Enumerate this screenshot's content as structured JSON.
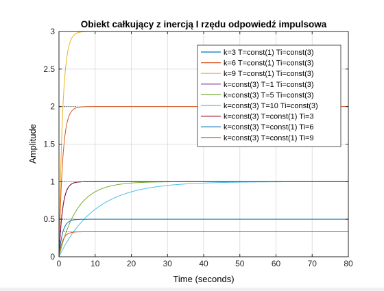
{
  "chart_data": {
    "type": "line",
    "title": "Obiekt całkujący z inercją I rzędu odpowiedź impulsowa",
    "xlabel": "Time (seconds)",
    "ylabel": "Amplitude",
    "xlim": [
      0,
      80
    ],
    "ylim": [
      0,
      3
    ],
    "xticks": [
      0,
      10,
      20,
      30,
      40,
      50,
      60,
      70,
      80
    ],
    "xtick_labels": [
      "0",
      "10",
      "20",
      "30",
      "40",
      "50",
      "60",
      "70",
      "80"
    ],
    "yticks": [
      0,
      0.5,
      1,
      1.5,
      2,
      2.5,
      3
    ],
    "ytick_labels": [
      "0",
      "0.5",
      "1",
      "1.5",
      "2",
      "2.5",
      "3"
    ],
    "grid": true,
    "legend_position": "top-right",
    "steady_state_markers": [
      0.333,
      0.5,
      1,
      2,
      3
    ],
    "series": [
      {
        "name": "k=3 T=const(1) Ti=const(3)",
        "k": 3,
        "T": 1,
        "Ti": 3,
        "final": 1,
        "color": "#0072BD"
      },
      {
        "name": "k=6 T=const(1) Ti=const(3)",
        "k": 6,
        "T": 1,
        "Ti": 3,
        "final": 2,
        "color": "#D95319"
      },
      {
        "name": "k=9 T=const(1) Ti=const(3)",
        "k": 9,
        "T": 1,
        "Ti": 3,
        "final": 3,
        "color": "#EDB120"
      },
      {
        "name": "k=const(3) T=1 Ti=const(3)",
        "k": 3,
        "T": 1,
        "Ti": 3,
        "final": 1,
        "color": "#7E2F8E"
      },
      {
        "name": "k=const(3) T=5 Ti=const(3)",
        "k": 3,
        "T": 5,
        "Ti": 3,
        "final": 1,
        "color": "#77AC30"
      },
      {
        "name": "k=const(3) T=10 Ti=const(3)",
        "k": 3,
        "T": 10,
        "Ti": 3,
        "final": 1,
        "color": "#4DBEEE"
      },
      {
        "name": "k=const(3) T=const(1) Ti=3",
        "k": 3,
        "T": 1,
        "Ti": 3,
        "final": 1,
        "color": "#A2142F"
      },
      {
        "name": "k=const(3) T=const(1) Ti=6",
        "k": 3,
        "T": 1,
        "Ti": 6,
        "final": 0.5,
        "color": "#0072BD"
      },
      {
        "name": "k=const(3) T=const(1) Ti=9",
        "k": 3,
        "T": 1,
        "Ti": 9,
        "final": 0.333,
        "color": "#D95319"
      }
    ]
  }
}
